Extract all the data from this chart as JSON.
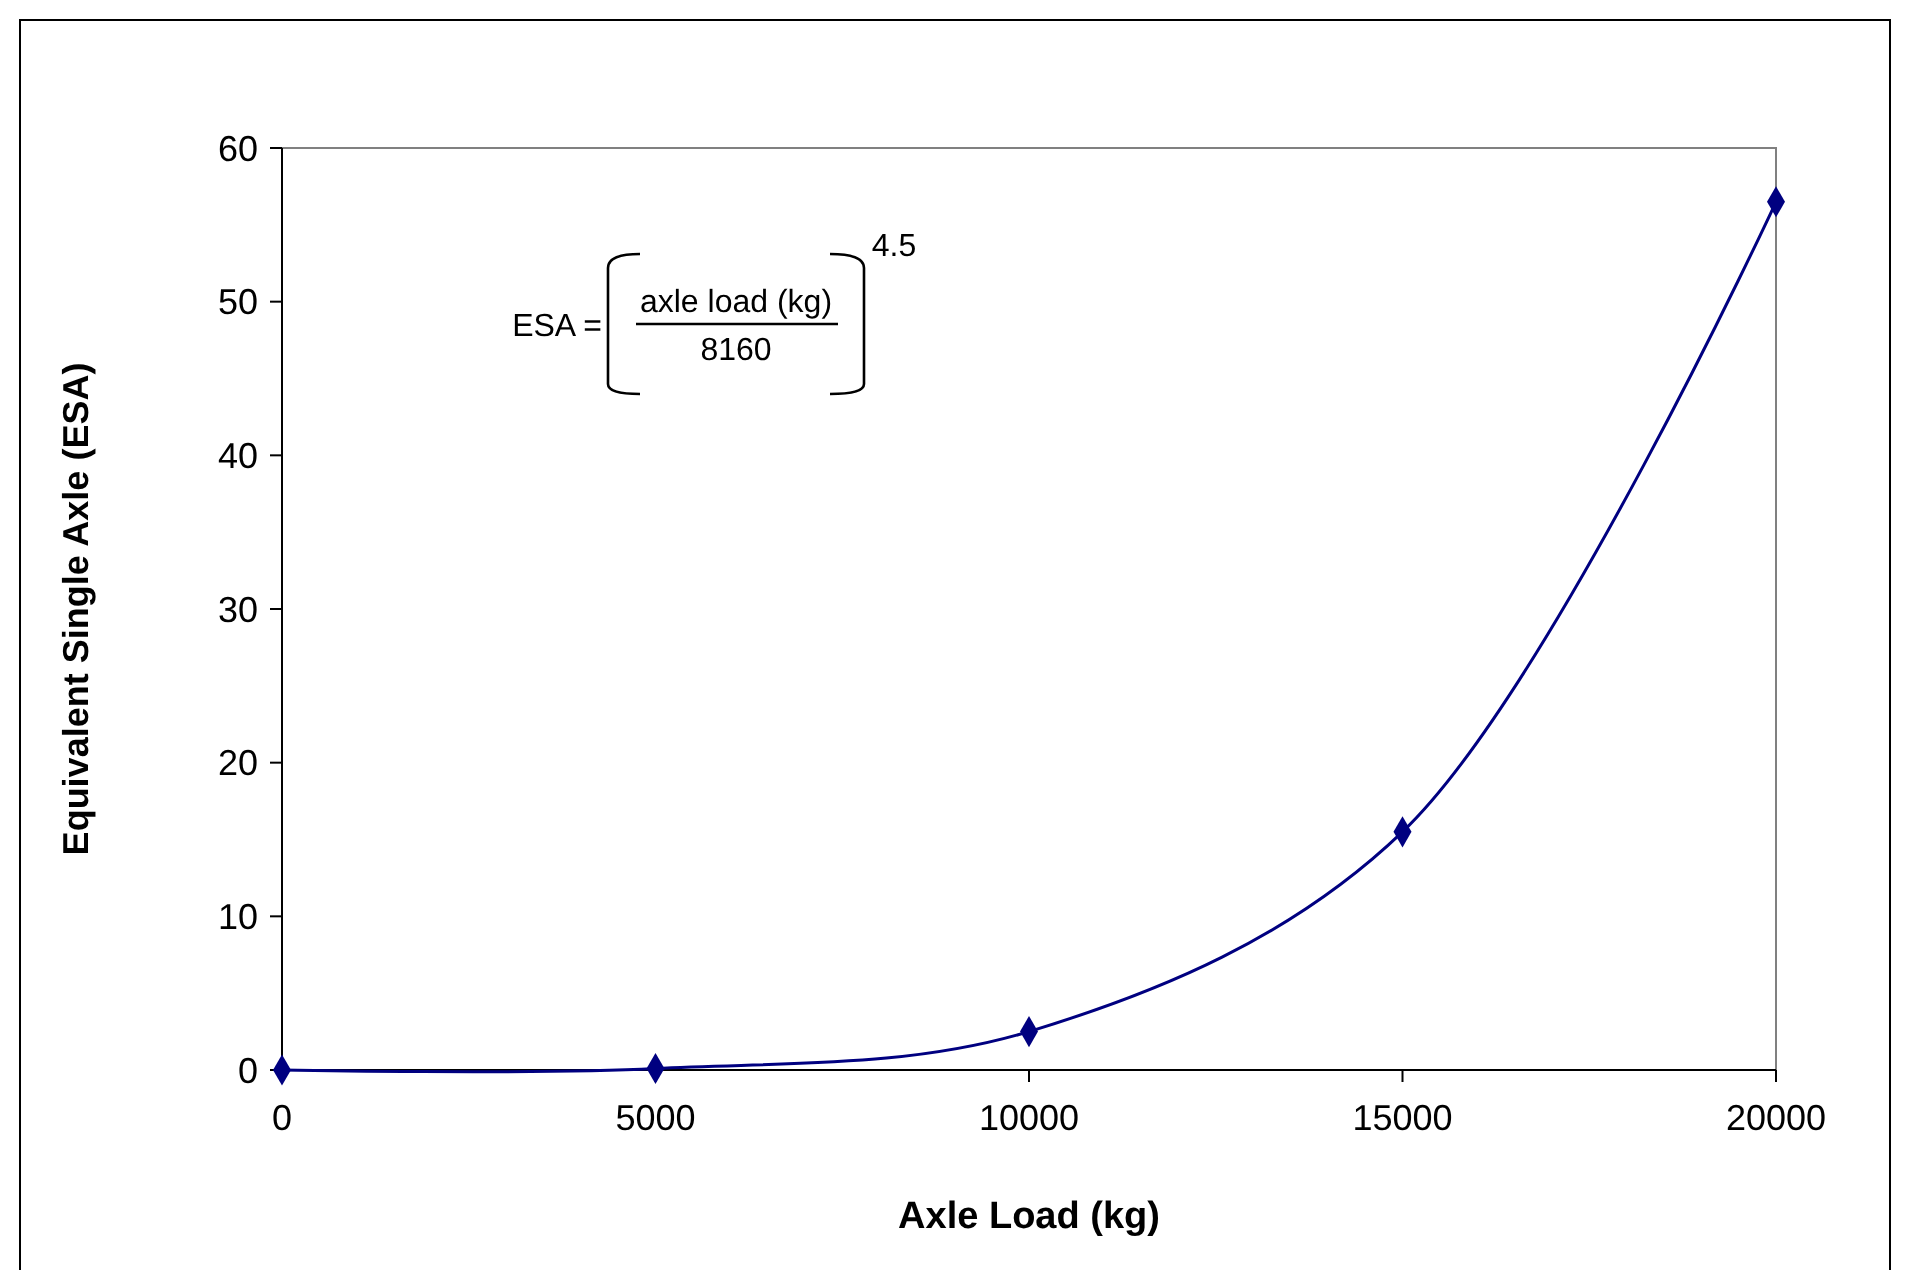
{
  "chart_data": {
    "type": "line",
    "xlabel": "Axle Load (kg)",
    "ylabel": "Equivalent Single Axle (ESA)",
    "x": [
      0,
      5000,
      10000,
      15000,
      20000
    ],
    "series": [
      {
        "color": "#000080",
        "values": [
          0,
          0.1,
          2.5,
          15.5,
          56.5
        ]
      }
    ],
    "xlim": [
      0,
      20000
    ],
    "xticks": [
      0,
      5000,
      10000,
      15000,
      20000
    ],
    "ylim": [
      0,
      60
    ],
    "yticks": [
      0,
      10,
      20,
      30,
      40,
      50,
      60
    ],
    "grid": false,
    "marker": "diamond",
    "line_style": "solid",
    "annotations": [
      "ESA =",
      "axle load (kg)",
      "8160",
      "4.5"
    ]
  }
}
